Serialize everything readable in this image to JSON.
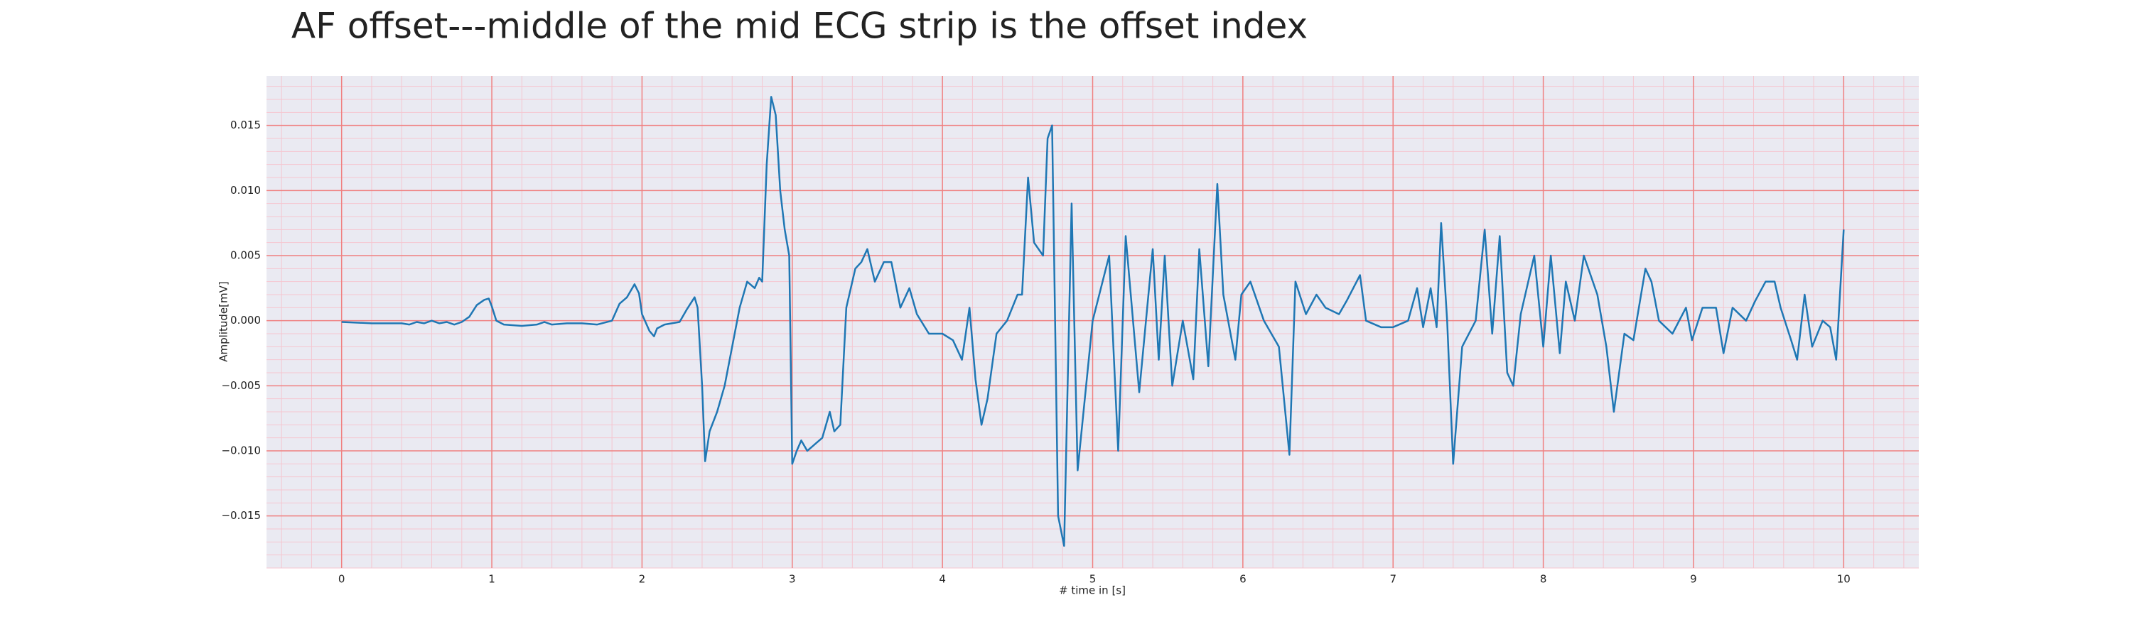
{
  "chart_data": {
    "type": "line",
    "title": "AF offset---middle of the mid ECG strip is the offset index",
    "x_label": "# time in [s]",
    "y_label": "Amplitude[mV]",
    "x": [
      0,
      0.2,
      0.4,
      0.45,
      0.5,
      0.55,
      0.6,
      0.65,
      0.7,
      0.75,
      0.8,
      0.85,
      0.9,
      0.95,
      0.98,
      1.0,
      1.03,
      1.08,
      1.2,
      1.3,
      1.35,
      1.4,
      1.5,
      1.6,
      1.7,
      1.8,
      1.85,
      1.9,
      1.95,
      1.98,
      2.0,
      2.05,
      2.08,
      2.1,
      2.15,
      2.25,
      2.3,
      2.35,
      2.37,
      2.4,
      2.42,
      2.45,
      2.5,
      2.55,
      2.6,
      2.65,
      2.7,
      2.75,
      2.78,
      2.8,
      2.83,
      2.86,
      2.89,
      2.92,
      2.95,
      2.98,
      3.0,
      3.03,
      3.06,
      3.1,
      3.15,
      3.2,
      3.25,
      3.28,
      3.32,
      3.36,
      3.42,
      3.46,
      3.5,
      3.55,
      3.61,
      3.66,
      3.72,
      3.78,
      3.83,
      3.91,
      4.0,
      4.07,
      4.13,
      4.18,
      4.22,
      4.26,
      4.3,
      4.36,
      4.43,
      4.5,
      4.53,
      4.57,
      4.61,
      4.67,
      4.7,
      4.73,
      4.77,
      4.81,
      4.86,
      4.9,
      5.0,
      5.11,
      5.17,
      5.22,
      5.31,
      5.4,
      5.44,
      5.48,
      5.53,
      5.6,
      5.67,
      5.71,
      5.77,
      5.83,
      5.87,
      5.95,
      5.99,
      6.05,
      6.14,
      6.24,
      6.31,
      6.35,
      6.42,
      6.49,
      6.55,
      6.64,
      6.69,
      6.78,
      6.82,
      6.92,
      7.0,
      7.1,
      7.16,
      7.2,
      7.25,
      7.29,
      7.32,
      7.36,
      7.4,
      7.46,
      7.55,
      7.61,
      7.66,
      7.71,
      7.76,
      7.8,
      7.85,
      7.94,
      8.0,
      8.05,
      8.11,
      8.15,
      8.21,
      8.27,
      8.36,
      8.42,
      8.47,
      8.54,
      8.6,
      8.68,
      8.72,
      8.77,
      8.86,
      8.95,
      8.99,
      9.06,
      9.15,
      9.2,
      9.26,
      9.35,
      9.41,
      9.48,
      9.54,
      9.58,
      9.65,
      9.69,
      9.74,
      9.79,
      9.86,
      9.91,
      9.95,
      9.98,
      10.0
    ],
    "series": [
      {
        "color": "#1f77b4",
        "values": [
          -0.0001,
          -0.0002,
          -0.0002,
          -0.0003,
          -0.0001,
          -0.0002,
          0.0,
          -0.0002,
          -0.0001,
          -0.0003,
          -0.0001,
          0.0003,
          0.0012,
          0.0016,
          0.0017,
          0.0011,
          0.0,
          -0.0003,
          -0.0004,
          -0.0003,
          -0.0001,
          -0.0003,
          -0.0002,
          -0.0002,
          -0.0003,
          0.0,
          0.0013,
          0.0018,
          0.0028,
          0.0021,
          0.0005,
          -0.0008,
          -0.0012,
          -0.0006,
          -0.0003,
          -0.0001,
          0.0009,
          0.0018,
          0.001,
          -0.005,
          -0.0108,
          -0.0085,
          -0.007,
          -0.005,
          -0.002,
          0.001,
          0.003,
          0.0025,
          0.0033,
          0.003,
          0.012,
          0.0172,
          0.0158,
          0.01,
          0.007,
          0.005,
          -0.011,
          -0.01,
          -0.0092,
          -0.01,
          -0.0095,
          -0.009,
          -0.007,
          -0.0085,
          -0.008,
          0.001,
          0.004,
          0.0045,
          0.0055,
          0.003,
          0.0045,
          0.0045,
          0.001,
          0.0025,
          0.0005,
          -0.001,
          -0.001,
          -0.0015,
          -0.003,
          0.001,
          -0.0045,
          -0.008,
          -0.006,
          -0.001,
          0.0,
          0.002,
          0.002,
          0.011,
          0.006,
          0.005,
          0.014,
          0.015,
          -0.015,
          -0.0173,
          0.009,
          -0.0115,
          0.0,
          0.005,
          -0.01,
          0.0065,
          -0.0055,
          0.0055,
          -0.003,
          0.005,
          -0.005,
          0.0,
          -0.0045,
          0.0055,
          -0.0035,
          0.0105,
          0.002,
          -0.003,
          0.002,
          0.003,
          0.0,
          -0.002,
          -0.0103,
          0.003,
          0.0005,
          0.002,
          0.001,
          0.0005,
          0.0015,
          0.0035,
          0.0,
          -0.0005,
          -0.0005,
          0.0,
          0.0025,
          -0.0005,
          0.0025,
          -0.0005,
          0.0075,
          0.0,
          -0.011,
          -0.002,
          0.0,
          0.007,
          -0.001,
          0.0065,
          -0.004,
          -0.005,
          0.0005,
          0.005,
          -0.002,
          0.005,
          -0.0025,
          0.003,
          0.0,
          0.005,
          0.002,
          -0.002,
          -0.007,
          -0.001,
          -0.0015,
          0.004,
          0.003,
          0.0,
          -0.001,
          0.001,
          -0.0015,
          0.001,
          0.001,
          -0.0025,
          0.001,
          0.0,
          0.0015,
          0.003,
          0.003,
          0.001,
          -0.0015,
          -0.003,
          0.002,
          -0.002,
          0.0,
          -0.0005,
          -0.003,
          0.003,
          0.007
        ]
      }
    ],
    "xlim": [
      -0.5,
      10.5
    ],
    "xticks": [
      0,
      1,
      2,
      3,
      4,
      5,
      6,
      7,
      8,
      9,
      10
    ],
    "ylim": [
      -0.019,
      0.0188
    ],
    "yticks": [
      {
        "value": -0.015,
        "label": "−0.015"
      },
      {
        "value": -0.01,
        "label": "−0.010"
      },
      {
        "value": -0.005,
        "label": "−0.005"
      },
      {
        "value": 0,
        "label": "0.000"
      },
      {
        "value": 0.005,
        "label": "0.005"
      },
      {
        "value": 0.01,
        "label": "0.010"
      },
      {
        "value": 0.015,
        "label": "0.015"
      }
    ],
    "grid": true,
    "grid_color": "#f08080",
    "minor_grid_color": "#f5c6d0",
    "minor_divisions": 5,
    "background": "#eaeaf2"
  }
}
